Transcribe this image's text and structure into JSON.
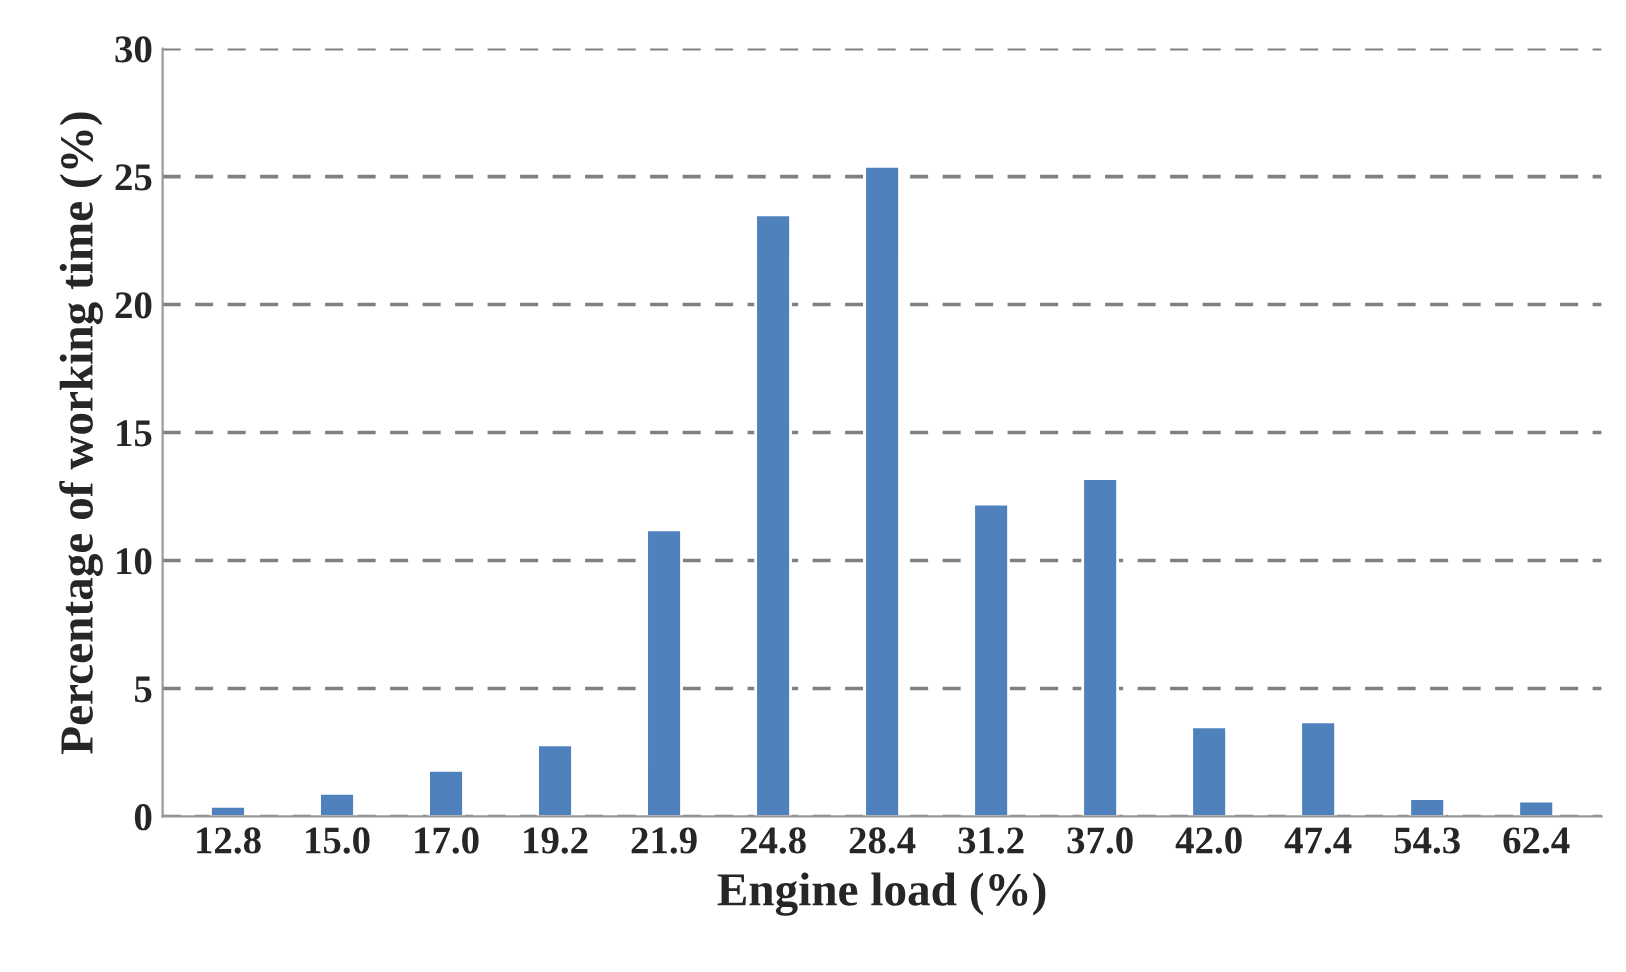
{
  "chart_data": {
    "type": "bar",
    "xlabel": "Engine load (%)",
    "ylabel": "Percentage of working time (%)",
    "categories": [
      "12.8",
      "15.0",
      "17.0",
      "19.2",
      "21.9",
      "24.8",
      "28.4",
      "31.2",
      "37.0",
      "42.0",
      "47.4",
      "54.3",
      "62.4"
    ],
    "values": [
      0.4,
      0.9,
      1.8,
      2.8,
      11.2,
      23.5,
      25.4,
      12.2,
      13.2,
      3.5,
      3.7,
      0.7,
      0.6
    ],
    "color": "#4f81bd",
    "ylim": [
      0,
      30
    ],
    "yticks": [
      0,
      5,
      10,
      15,
      20,
      25,
      30
    ],
    "grid": "y",
    "legend": false
  }
}
